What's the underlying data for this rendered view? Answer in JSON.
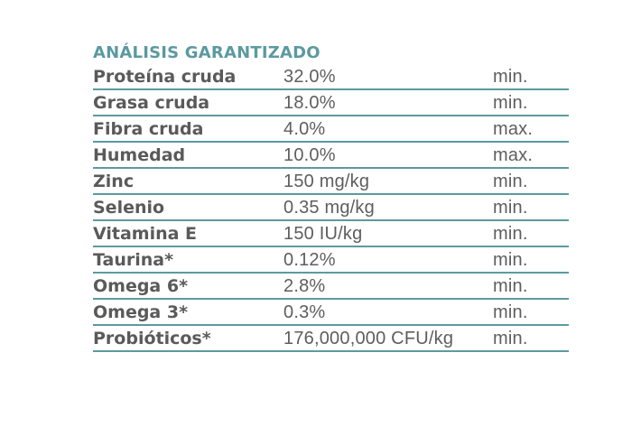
{
  "analysis": {
    "title": "ANÁLISIS GARANTIZADO",
    "rows": [
      {
        "name": "Proteína cruda",
        "value": "32.0%",
        "limit": "min."
      },
      {
        "name": "Grasa cruda",
        "value": "18.0%",
        "limit": "min."
      },
      {
        "name": "Fibra cruda",
        "value": "4.0%",
        "limit": "max."
      },
      {
        "name": "Humedad",
        "value": "10.0%",
        "limit": "max."
      },
      {
        "name": "Zinc",
        "value": "150 mg/kg",
        "limit": "min."
      },
      {
        "name": "Selenio",
        "value": "0.35 mg/kg",
        "limit": "min."
      },
      {
        "name": "Vitamina E",
        "value": "150 IU/kg",
        "limit": "min."
      },
      {
        "name": "Taurina*",
        "value": "0.12%",
        "limit": "min."
      },
      {
        "name": "Omega 6*",
        "value": "2.8%",
        "limit": "min."
      },
      {
        "name": "Omega 3*",
        "value": "0.3%",
        "limit": "min."
      },
      {
        "name": "Probióticos*",
        "value": "176,000,000 CFU/kg",
        "limit": "min."
      }
    ]
  },
  "colors": {
    "accent": "#5b9aa0",
    "text": "#5e5e5e",
    "background": "#ffffff"
  }
}
